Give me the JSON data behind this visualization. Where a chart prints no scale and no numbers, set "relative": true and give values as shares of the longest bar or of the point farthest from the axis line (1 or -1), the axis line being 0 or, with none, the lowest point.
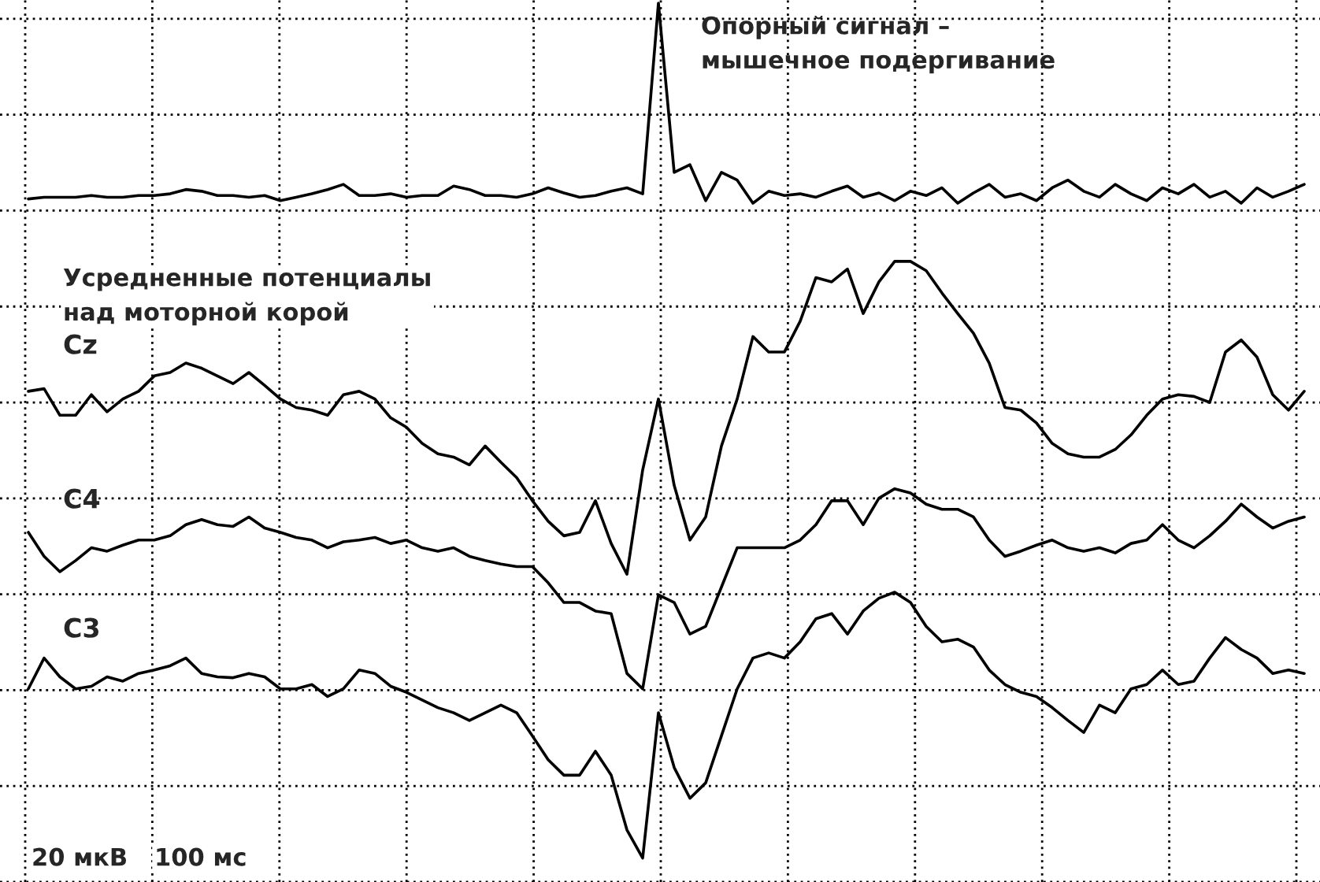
{
  "chart_data": {
    "type": "line",
    "relative": true,
    "grid": true,
    "categories": [
      null,
      null,
      null,
      null,
      null,
      null,
      null,
      null,
      null,
      null,
      null,
      null,
      null,
      null,
      null,
      null,
      null,
      null,
      null,
      null,
      null,
      null,
      null,
      null,
      null,
      null,
      null,
      null,
      null,
      null,
      null,
      null,
      null,
      null,
      null,
      null,
      null,
      null,
      null,
      null,
      null,
      null,
      null,
      null,
      null,
      null,
      null,
      null,
      null,
      null,
      null,
      null,
      null,
      null,
      null,
      null,
      null,
      null,
      null,
      null,
      null,
      null,
      null,
      null,
      null,
      null,
      null,
      null,
      null,
      null,
      null,
      null,
      null,
      null,
      null,
      null,
      null,
      null,
      null,
      null,
      null,
      null
    ],
    "series": [
      {
        "name": "Опорный сигнал –\nмышечное подергивание",
        "color": "#000000",
        "values": [
          0.771,
          0.773,
          0.773,
          0.773,
          0.775,
          0.773,
          0.773,
          0.775,
          0.775,
          0.777,
          0.782,
          0.78,
          0.775,
          0.775,
          0.773,
          0.775,
          0.769,
          0.773,
          0.777,
          0.782,
          0.788,
          0.775,
          0.775,
          0.777,
          0.773,
          0.775,
          0.775,
          0.786,
          0.782,
          0.775,
          0.775,
          0.773,
          0.777,
          0.784,
          0.778,
          0.773,
          0.775,
          0.78,
          0.784,
          0.777,
          1,
          0.802,
          0.811,
          0.769,
          0.802,
          0.793,
          0.766,
          0.78,
          0.775,
          0.777,
          0.773,
          0.78,
          0.786,
          0.773,
          0.778,
          0.769,
          0.78,
          0.775,
          0.784,
          0.766,
          0.778,
          0.788,
          0.773,
          0.777,
          0.769,
          0.784,
          0.793,
          0.78,
          0.773,
          0.788,
          0.777,
          0.769,
          0.784,
          0.777,
          0.788,
          0.773,
          0.78,
          0.766,
          0.784,
          0.773,
          0.78,
          0.788
        ]
      },
      {
        "name": "Cz",
        "color": "#000000",
        "values": [
          0.546,
          0.549,
          0.518,
          0.518,
          0.542,
          0.522,
          0.537,
          0.546,
          0.564,
          0.568,
          0.579,
          0.573,
          0.564,
          0.555,
          0.568,
          0.553,
          0.537,
          0.527,
          0.524,
          0.518,
          0.542,
          0.546,
          0.537,
          0.515,
          0.504,
          0.485,
          0.473,
          0.469,
          0.46,
          0.482,
          0.463,
          0.445,
          0.418,
          0.394,
          0.377,
          0.381,
          0.418,
          0.368,
          0.332,
          0.454,
          0.537,
          0.436,
          0.372,
          0.399,
          0.482,
          0.537,
          0.61,
          0.592,
          0.592,
          0.628,
          0.679,
          0.674,
          0.689,
          0.637,
          0.674,
          0.698,
          0.698,
          0.687,
          0.661,
          0.637,
          0.614,
          0.579,
          0.527,
          0.524,
          0.509,
          0.485,
          0.473,
          0.469,
          0.469,
          0.478,
          0.495,
          0.518,
          0.537,
          0.542,
          0.54,
          0.533,
          0.592,
          0.606,
          0.586,
          0.542,
          0.524,
          0.546
        ]
      },
      {
        "name": "C4",
        "color": "#000000",
        "values": [
          0.381,
          0.353,
          0.335,
          0.348,
          0.363,
          0.359,
          0.366,
          0.372,
          0.372,
          0.377,
          0.39,
          0.396,
          0.39,
          0.388,
          0.399,
          0.386,
          0.381,
          0.375,
          0.372,
          0.363,
          0.37,
          0.372,
          0.375,
          0.368,
          0.372,
          0.363,
          0.359,
          0.363,
          0.353,
          0.348,
          0.344,
          0.341,
          0.341,
          0.322,
          0.299,
          0.299,
          0.289,
          0.286,
          0.216,
          0.198,
          0.308,
          0.299,
          0.262,
          0.271,
          0.317,
          0.363,
          0.363,
          0.363,
          0.363,
          0.372,
          0.39,
          0.418,
          0.418,
          0.39,
          0.421,
          0.432,
          0.427,
          0.414,
          0.408,
          0.408,
          0.399,
          0.372,
          0.353,
          0.359,
          0.366,
          0.372,
          0.363,
          0.359,
          0.363,
          0.357,
          0.368,
          0.372,
          0.39,
          0.372,
          0.363,
          0.377,
          0.394,
          0.414,
          0.399,
          0.386,
          0.394,
          0.399
        ]
      },
      {
        "name": "C3",
        "color": "#000000",
        "values": [
          0.198,
          0.234,
          0.212,
          0.198,
          0.201,
          0.212,
          0.207,
          0.216,
          0.22,
          0.225,
          0.234,
          0.216,
          0.212,
          0.211,
          0.216,
          0.212,
          0.198,
          0.198,
          0.203,
          0.189,
          0.198,
          0.22,
          0.216,
          0.201,
          0.194,
          0.185,
          0.176,
          0.17,
          0.161,
          0.17,
          0.179,
          0.17,
          0.143,
          0.115,
          0.097,
          0.097,
          0.125,
          0.097,
          0.033,
          0,
          0.17,
          0.106,
          0.07,
          0.088,
          0.143,
          0.198,
          0.234,
          0.24,
          0.234,
          0.253,
          0.28,
          0.286,
          0.262,
          0.289,
          0.304,
          0.311,
          0.299,
          0.271,
          0.253,
          0.256,
          0.247,
          0.22,
          0.203,
          0.194,
          0.189,
          0.176,
          0.161,
          0.147,
          0.179,
          0.17,
          0.198,
          0.203,
          0.22,
          0.203,
          0.207,
          0.234,
          0.258,
          0.244,
          0.234,
          0.216,
          0.22,
          0.216
        ]
      }
    ],
    "annotations": [
      "Усредненные потенциалы\nнад моторной корой",
      "20 мкВ",
      "100 мс"
    ]
  }
}
